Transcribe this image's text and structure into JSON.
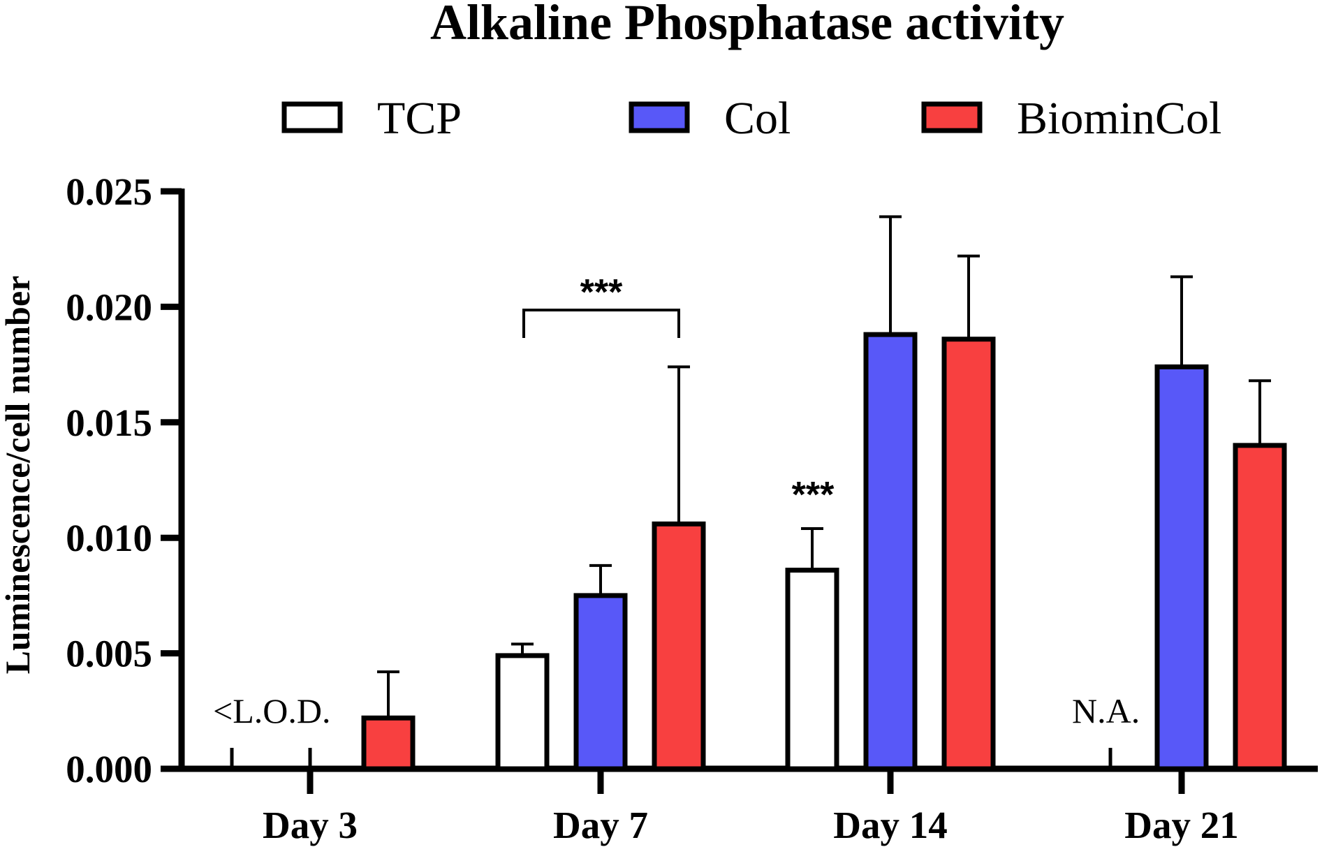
{
  "chart_data": {
    "type": "bar",
    "title": "Alkaline Phosphatase activity",
    "xlabel": "",
    "ylabel": "Luminescence/cell number",
    "ylim": [
      0,
      0.025
    ],
    "yticks": [
      "0.000",
      "0.005",
      "0.010",
      "0.015",
      "0.020",
      "0.025"
    ],
    "categories": [
      "Day 3",
      "Day 7",
      "Day 14",
      "Day 21"
    ],
    "series": [
      {
        "name": "TCP",
        "color": "#ffffff",
        "values": [
          null,
          0.0049,
          0.0086,
          null
        ],
        "errors": [
          null,
          0.0005,
          0.0018,
          null
        ]
      },
      {
        "name": "Col",
        "color": "#5858f8",
        "values": [
          null,
          0.0075,
          0.0188,
          0.0174
        ],
        "errors": [
          null,
          0.0013,
          0.0051,
          0.0039
        ]
      },
      {
        "name": "BiominCol",
        "color": "#f84040",
        "values": [
          0.0022,
          0.0106,
          0.0186,
          0.014
        ],
        "errors": [
          0.002,
          0.0068,
          0.0036,
          0.0028
        ]
      }
    ],
    "annotations": {
      "day3_lod": "<L.O.D.",
      "day21_na": "N.A.",
      "sig_bracket": "***",
      "sig_tcp_day14": "***"
    },
    "legend": "top"
  }
}
